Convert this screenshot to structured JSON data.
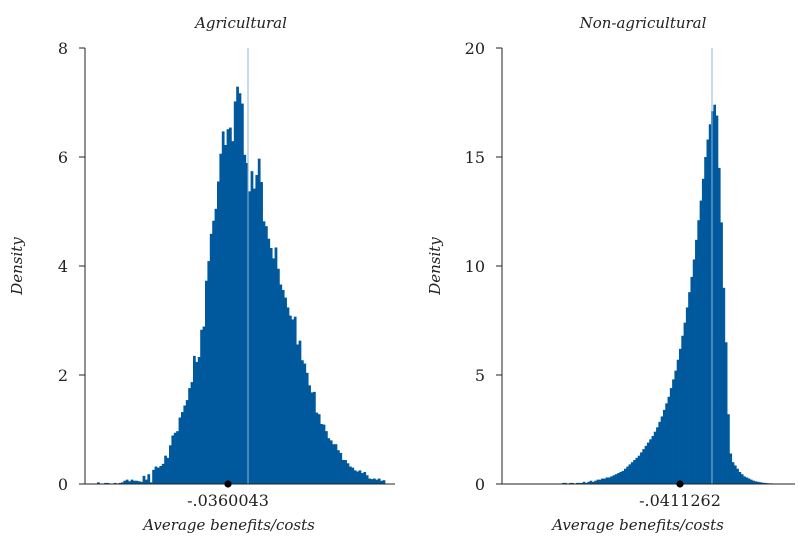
{
  "figure": {
    "bar_color": "#00599c",
    "line_color": "#8db8dc",
    "marker_color": "#000000"
  },
  "chart_data": [
    {
      "type": "histogram",
      "title": "Agricultural",
      "xlabel": "Average benefits/costs",
      "ylabel": "Density",
      "ylim": [
        0,
        8
      ],
      "yticks": [
        "0",
        "2",
        "4",
        "6",
        "8"
      ],
      "xticks": [
        "-.0360043"
      ],
      "x_marker_value": -0.0360043,
      "bins": 120,
      "density": [
        0.03,
        0,
        0,
        0.02,
        0.02,
        0,
        0,
        0.02,
        0,
        0.02,
        0.03,
        0.06,
        0.08,
        0.05,
        0.08,
        0.06,
        0.06,
        0.05,
        0.04,
        0.15,
        0.08,
        0.18,
        0.03,
        0.26,
        0.32,
        0.3,
        0.33,
        0.37,
        0.52,
        0.48,
        0.71,
        0.89,
        0.94,
        0.97,
        1.22,
        1.32,
        1.44,
        1.54,
        1.76,
        1.87,
        2.35,
        2.24,
        2.33,
        2.83,
        2.89,
        3.73,
        4.09,
        4.59,
        4.83,
        5.05,
        5.55,
        6.06,
        6.47,
        6.22,
        6.51,
        6.54,
        6.29,
        7.02,
        7.29,
        7.17,
        6.98,
        6.04,
        5.89,
        5.37,
        5.74,
        5.42,
        5.67,
        5.97,
        5.54,
        4.82,
        4.73,
        4.5,
        4.33,
        4.14,
        4.34,
        3.95,
        3.66,
        3.56,
        3.42,
        3.24,
        3.09,
        3.02,
        3.07,
        2.56,
        2.63,
        2.27,
        2.21,
        2.04,
        1.81,
        1.68,
        1.69,
        1.31,
        1.28,
        1.1,
        1.09,
        0.97,
        0.84,
        0.8,
        0.73,
        0.73,
        0.62,
        0.57,
        0.44,
        0.44,
        0.38,
        0.32,
        0.3,
        0.25,
        0.23,
        0.25,
        0.2,
        0.22,
        0.16,
        0.1,
        0.09,
        0.1,
        0.08,
        0.1,
        0.06,
        0.07
      ],
      "reference_line_density_max": 8.0
    },
    {
      "type": "histogram",
      "title": "Non-agricultural",
      "xlabel": "Average benefits/costs",
      "ylabel": "Density",
      "ylim": [
        0,
        20
      ],
      "yticks": [
        "0",
        "5",
        "10",
        "15",
        "20"
      ],
      "xticks": [
        "-.0411262"
      ],
      "x_marker_value": -0.0411262,
      "bins": 120,
      "density": [
        0,
        0,
        0,
        0,
        0,
        0,
        0,
        0,
        0,
        0,
        0,
        0,
        0,
        0,
        0,
        0,
        0,
        0,
        0,
        0,
        0,
        0.05,
        0.05,
        0,
        0.05,
        0.05,
        0,
        0.05,
        0.05,
        0.05,
        0.1,
        0.05,
        0.1,
        0.15,
        0.1,
        0.15,
        0.2,
        0.2,
        0.25,
        0.25,
        0.3,
        0.3,
        0.35,
        0.4,
        0.45,
        0.5,
        0.55,
        0.6,
        0.7,
        0.8,
        0.9,
        1,
        1.1,
        1.2,
        1.3,
        1.45,
        1.6,
        1.75,
        1.9,
        2.05,
        2.2,
        2.4,
        2.6,
        2.85,
        3.1,
        3.4,
        3.7,
        4.0,
        4.4,
        4.8,
        5.2,
        5.7,
        6.2,
        6.8,
        7.4,
        8.1,
        8.8,
        9.5,
        10.3,
        11.2,
        12.1,
        13.0,
        14.0,
        15.0,
        15.8,
        16.5,
        17.1,
        17.4,
        16.9,
        14.5,
        12.0,
        9.0,
        6.5,
        3.2,
        1.4,
        1.0,
        0.85,
        0.7,
        0.55,
        0.45,
        0.35,
        0.3,
        0.25,
        0.2,
        0.15,
        0.12,
        0.1,
        0.08,
        0.06,
        0.05,
        0.04,
        0.03,
        0.03,
        0.02,
        0.02,
        0.01,
        0.01,
        0.01,
        0,
        0
      ],
      "reference_line_density_max": 20.0
    }
  ]
}
